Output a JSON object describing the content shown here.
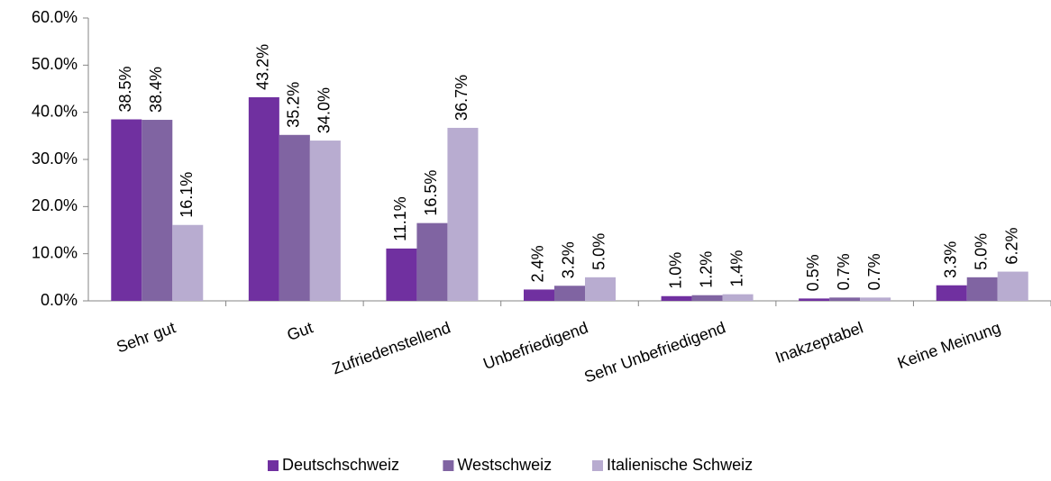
{
  "chart_data": {
    "type": "bar",
    "categories": [
      "Sehr gut",
      "Gut",
      "Zufriedenstellend",
      "Unbefriedigend",
      "Sehr Unbefriedigend",
      "Inakzeptabel",
      "Keine Meinung"
    ],
    "series": [
      {
        "name": "Deutschschweiz",
        "color": "#7030a0",
        "values": [
          38.5,
          43.2,
          11.1,
          2.4,
          1.0,
          0.5,
          3.3
        ],
        "value_labels": [
          "38.5%",
          "43.2%",
          "11.1%",
          "2.4%",
          "1.0%",
          "0.5%",
          "3.3%"
        ]
      },
      {
        "name": "Westschweiz",
        "color": "#8064a2",
        "values": [
          38.4,
          35.2,
          16.5,
          3.2,
          1.2,
          0.7,
          5.0
        ],
        "value_labels": [
          "38.4%",
          "35.2%",
          "16.5%",
          "3.2%",
          "1.2%",
          "0.7%",
          "5.0%"
        ]
      },
      {
        "name": "Italienische Schweiz",
        "color": "#b8acd0",
        "values": [
          16.1,
          34.0,
          36.7,
          5.0,
          1.4,
          0.7,
          6.2
        ],
        "value_labels": [
          "16.1%",
          "34.0%",
          "36.7%",
          "5.0%",
          "1.4%",
          "0.7%",
          "6.2%"
        ]
      }
    ],
    "ylim": [
      0,
      60
    ],
    "yticks": [
      {
        "value": 0,
        "label": "0.0%"
      },
      {
        "value": 10,
        "label": "10.0%"
      },
      {
        "value": 20,
        "label": "20.0%"
      },
      {
        "value": 30,
        "label": "30.0%"
      },
      {
        "value": 40,
        "label": "40.0%"
      },
      {
        "value": 50,
        "label": "50.0%"
      },
      {
        "value": 60,
        "label": "60.0%"
      }
    ],
    "legend": "bottom"
  }
}
